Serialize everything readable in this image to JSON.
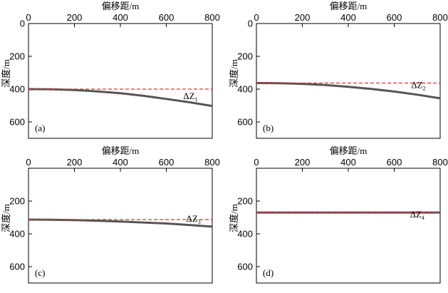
{
  "chart_data": [
    {
      "type": "line",
      "panel_label": "(a)",
      "xlabel": "偏移距/m",
      "ylabel": "深度/m",
      "xlim": [
        0,
        800
      ],
      "ylim": [
        0,
        700
      ],
      "y_inverted": true,
      "x_axis_position": "top",
      "xticks": [
        "0",
        "200",
        "400",
        "600",
        "800"
      ],
      "yticks": [
        "0",
        "200",
        "400",
        "600"
      ],
      "series": [
        {
          "style": "solid",
          "color": "#555555",
          "x": [
            0,
            100,
            200,
            300,
            400,
            500,
            600,
            700,
            800
          ],
          "y": [
            400,
            401,
            405,
            414,
            425,
            441,
            460,
            480,
            503
          ]
        },
        {
          "style": "dashed",
          "color": "#e03030",
          "x": [
            0,
            800
          ],
          "y": [
            400,
            400
          ]
        }
      ],
      "annotation": {
        "base": "ΔZ",
        "sub": "1",
        "x": 705,
        "y": 460
      }
    },
    {
      "type": "line",
      "panel_label": "(b)",
      "xlabel": "偏移距/m",
      "ylabel": "深度/m",
      "xlim": [
        0,
        800
      ],
      "ylim": [
        0,
        700
      ],
      "y_inverted": true,
      "x_axis_position": "top",
      "xticks": [
        "0",
        "200",
        "400",
        "600",
        "800"
      ],
      "yticks": [
        "0",
        "200",
        "400",
        "600"
      ],
      "series": [
        {
          "style": "solid",
          "color": "#555555",
          "x": [
            0,
            100,
            200,
            300,
            400,
            500,
            600,
            700,
            800
          ],
          "y": [
            363,
            364,
            368,
            375,
            386,
            399,
            415,
            434,
            456
          ]
        },
        {
          "style": "dashed",
          "color": "#e03030",
          "x": [
            0,
            800
          ],
          "y": [
            363,
            363
          ]
        }
      ],
      "annotation": {
        "base": "ΔZ",
        "sub": "2",
        "x": 705,
        "y": 393
      }
    },
    {
      "type": "line",
      "panel_label": "(c)",
      "xlabel": "偏移距/m",
      "ylabel": "深度/m",
      "xlim": [
        0,
        800
      ],
      "ylim": [
        0,
        700
      ],
      "y_inverted": true,
      "x_axis_position": "top",
      "xticks": [
        "0",
        "200",
        "400",
        "600",
        "800"
      ],
      "yticks": [
        "200",
        "400",
        "600"
      ],
      "series": [
        {
          "style": "solid",
          "color": "#555555",
          "x": [
            0,
            100,
            200,
            300,
            400,
            500,
            600,
            700,
            800
          ],
          "y": [
            313,
            314,
            316,
            320,
            325,
            331,
            337,
            346,
            356
          ]
        },
        {
          "style": "dashed",
          "color": "#e03030",
          "x": [
            0,
            800
          ],
          "y": [
            313,
            313
          ]
        }
      ],
      "annotation": {
        "base": "ΔZ",
        "sub": "3",
        "x": 718,
        "y": 326
      }
    },
    {
      "type": "line",
      "panel_label": "(d)",
      "xlabel": "偏移距/m",
      "ylabel": "深度/m",
      "xlim": [
        0,
        800
      ],
      "ylim": [
        0,
        700
      ],
      "y_inverted": true,
      "x_axis_position": "top",
      "xticks": [
        "0",
        "200",
        "400",
        "600",
        "800"
      ],
      "yticks": [
        "200",
        "400",
        "600"
      ],
      "series": [
        {
          "style": "solid",
          "color": "#555555",
          "x": [
            0,
            800
          ],
          "y": [
            270,
            270
          ]
        },
        {
          "style": "dashed",
          "color": "#e03030",
          "x": [
            0,
            800
          ],
          "y": [
            270,
            270
          ]
        }
      ],
      "annotation": {
        "base": "ΔZ",
        "sub": "4",
        "x": 700,
        "y": 300
      }
    }
  ]
}
